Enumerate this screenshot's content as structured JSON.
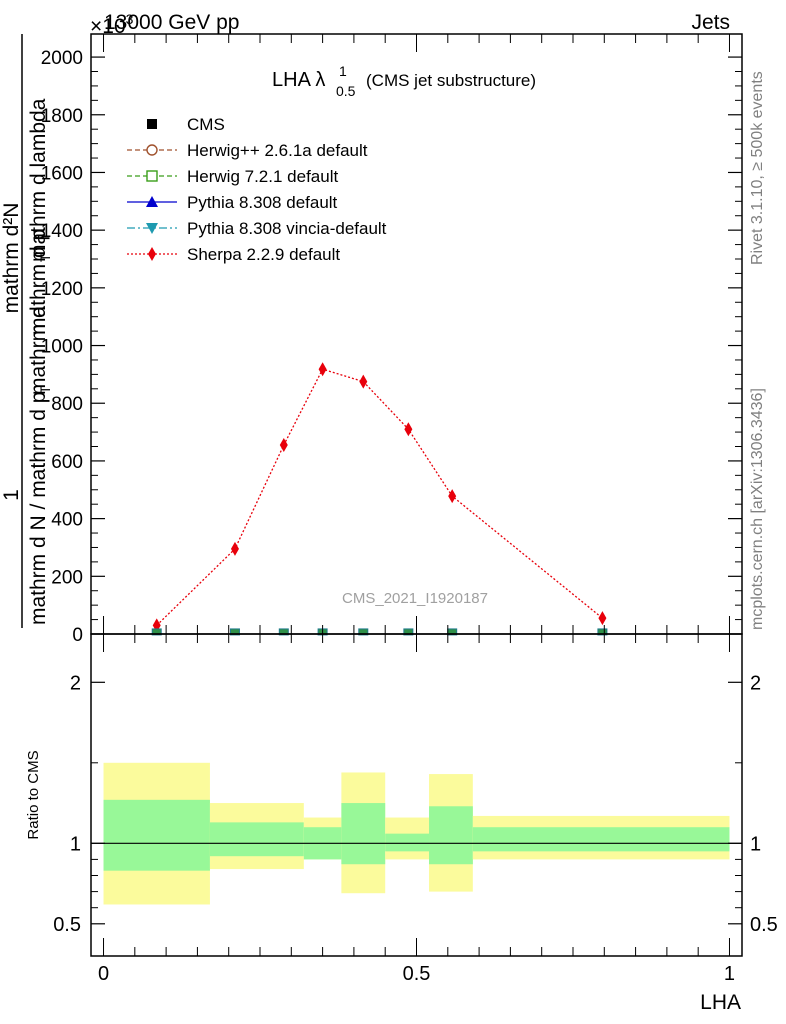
{
  "header": {
    "left": "13000 GeV pp",
    "right": "Jets",
    "exponent": "×10",
    "exponent_power": "3"
  },
  "side_labels": {
    "rivet": "Rivet 3.1.10, ≥ 500k events",
    "mcplots": "mcplots.cern.ch [arXiv:1306.3436]"
  },
  "watermark": "CMS_2021_I1920187",
  "title": {
    "main": "LHA λ",
    "sup": "1",
    "sub": "0.5",
    "suffix": "(CMS jet substructure)"
  },
  "axes": {
    "ylabel_top": "1",
    "ylabel_bottom": "mathrm d N / mathrm d p",
    "ylabel_numerator_over": "mathrm d",
    "ylabel_numerator": "mathrm d²N",
    "ylabel_denominator": "mathrm d p",
    "ylabel_denominator2": "mathrm d lambda",
    "ylabel_sub_T1": "T",
    "ylabel_sub_T2": "T",
    "ratio_ylabel": "Ratio to CMS",
    "xlabel": "LHA"
  },
  "legend": [
    {
      "label": "CMS",
      "color": "#000000",
      "marker": "square-filled",
      "line": "none"
    },
    {
      "label": "Herwig++ 2.6.1a default",
      "color": "#a0522d",
      "marker": "circle-open",
      "line": "dashed"
    },
    {
      "label": "Herwig 7.2.1 default",
      "color": "#3a9e1a",
      "marker": "square-open",
      "line": "dashed"
    },
    {
      "label": "Pythia 8.308 default",
      "color": "#0000cd",
      "marker": "triangle-up",
      "line": "solid"
    },
    {
      "label": "Pythia 8.308 vincia-default",
      "color": "#1e9ab0",
      "marker": "triangle-down",
      "line": "dashdot"
    },
    {
      "label": "Sherpa 2.2.9 default",
      "color": "#e8000b",
      "marker": "diamond",
      "line": "dotted"
    }
  ],
  "chart_data": {
    "type": "line",
    "x_range": [
      -0.02,
      1.02
    ],
    "y_range": [
      0,
      2080
    ],
    "y_ticks": [
      "0",
      "200",
      "400",
      "600",
      "800",
      "1000",
      "1200",
      "1400",
      "1600",
      "1800",
      "2000"
    ],
    "x_ticks": [
      "0",
      "0.5",
      "1"
    ],
    "ratio_y_range": [
      0.3,
      2.3
    ],
    "ratio_y_ticks": [
      "0.5",
      "1",
      "2"
    ],
    "series": [
      {
        "name": "Sherpa 2.2.9 default",
        "x": [
          0.085,
          0.21,
          0.288,
          0.35,
          0.415,
          0.487,
          0.557,
          0.797
        ],
        "y": [
          30,
          295,
          655,
          918,
          875,
          710,
          478,
          55
        ],
        "yerr": [
          8,
          10,
          17,
          20,
          20,
          17,
          12,
          7
        ]
      },
      {
        "name": "CMS",
        "x": [
          0.085,
          0.21,
          0.288,
          0.35,
          0.415,
          0.487,
          0.557,
          0.797
        ],
        "y": [
          2,
          2,
          2,
          2,
          2,
          2,
          2,
          2
        ]
      }
    ],
    "ratio_bands": [
      {
        "x0": 0.0,
        "x1": 0.17,
        "inner": [
          0.83,
          1.27
        ],
        "outer": [
          0.62,
          1.5
        ]
      },
      {
        "x0": 0.17,
        "x1": 0.32,
        "inner": [
          0.92,
          1.13
        ],
        "outer": [
          0.84,
          1.25
        ]
      },
      {
        "x0": 0.32,
        "x1": 0.38,
        "inner": [
          0.9,
          1.1
        ],
        "outer": [
          0.9,
          1.16
        ]
      },
      {
        "x0": 0.38,
        "x1": 0.45,
        "inner": [
          0.87,
          1.25
        ],
        "outer": [
          0.69,
          1.44
        ]
      },
      {
        "x0": 0.45,
        "x1": 0.52,
        "inner": [
          0.95,
          1.06
        ],
        "outer": [
          0.9,
          1.16
        ]
      },
      {
        "x0": 0.52,
        "x1": 0.59,
        "inner": [
          0.87,
          1.23
        ],
        "outer": [
          0.7,
          1.43
        ]
      },
      {
        "x0": 0.59,
        "x1": 1.0,
        "inner": [
          0.95,
          1.1
        ],
        "outer": [
          0.9,
          1.17
        ]
      }
    ],
    "ratio_reference": 1.0,
    "band_colors": {
      "inner": "#98f898",
      "outer": "#fbfb9c"
    }
  }
}
